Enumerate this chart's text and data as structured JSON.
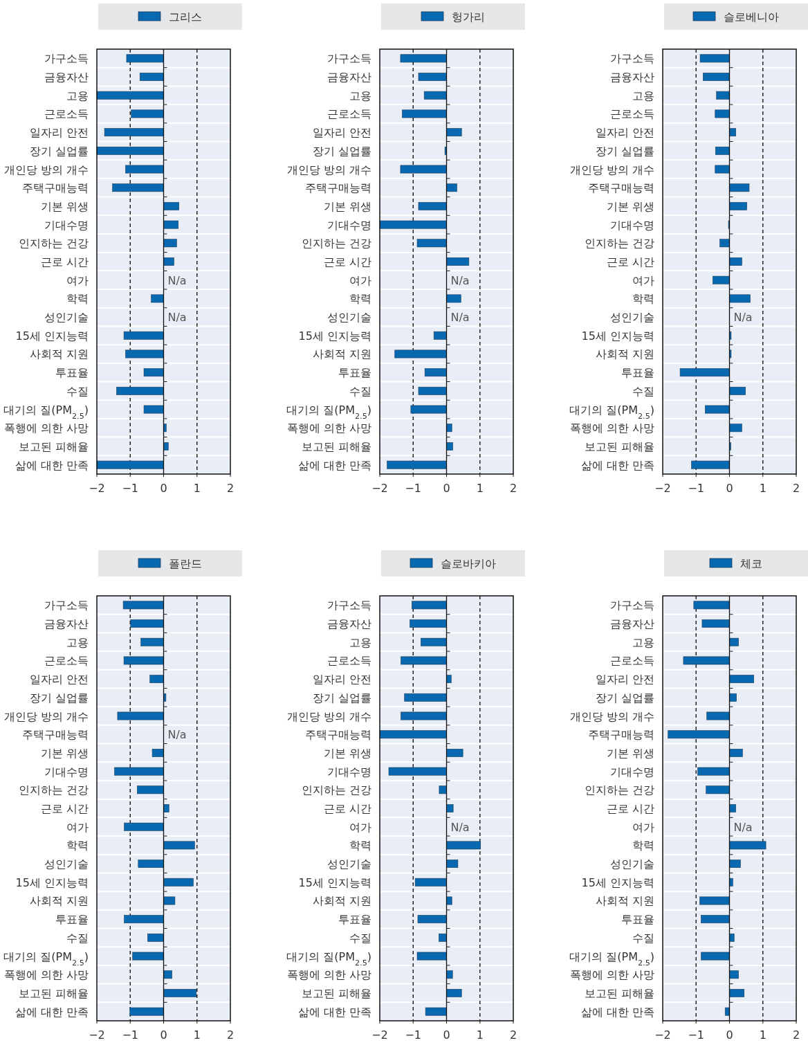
{
  "chart_data": [
    {
      "type": "bar",
      "orientation": "horizontal",
      "categories": [
        "가구소득",
        "금융자산",
        "고용",
        "근로소득",
        "일자리 안전",
        "장기 실업률",
        "개인당 방의 개수",
        "주택구매능력",
        "기본 위생",
        "기대수명",
        "인지하는 건강",
        "근로 시간",
        "여가",
        "학력",
        "성인기술",
        "15세 인지능력",
        "사회적 지원",
        "투표율",
        "수질",
        "대기의 질(PM$_{2.5}$)",
        "폭행에 의한 사망",
        "보고된 피해율",
        "삶에 대한 만족"
      ],
      "series": [
        {
          "name": "그리스",
          "color": "#0868b0",
          "values": [
            -1.11,
            -0.71,
            -2.0,
            -0.97,
            -1.77,
            -2.0,
            -1.14,
            -1.53,
            0.46,
            0.44,
            0.39,
            0.31,
            null,
            -0.37,
            null,
            -1.19,
            -1.14,
            -0.59,
            -1.41,
            -0.59,
            0.08,
            0.14,
            -2.0
          ]
        }
      ],
      "xlim": [
        -2,
        2
      ],
      "xticks": [
        -2,
        -1,
        0,
        1,
        2
      ],
      "ref_lines": [
        {
          "axis": "x",
          "value": -1,
          "line_style": "dashed"
        },
        {
          "axis": "x",
          "value": 1,
          "line_style": "dashed"
        }
      ],
      "annotations": [
        "N/a",
        "N/a"
      ],
      "legend": "top",
      "grid": "y"
    },
    {
      "type": "bar",
      "orientation": "horizontal",
      "categories": [
        "가구소득",
        "금융자산",
        "고용",
        "근로소득",
        "일자리 안전",
        "장기 실업률",
        "개인당 방의 개수",
        "주택구매능력",
        "기본 위생",
        "기대수명",
        "인지하는 건강",
        "근로 시간",
        "여가",
        "학력",
        "성인기술",
        "15세 인지능력",
        "사회적 지원",
        "투표율",
        "수질",
        "대기의 질(PM$_{2.5}$)",
        "폭행에 의한 사망",
        "보고된 피해율",
        "삶에 대한 만족"
      ],
      "series": [
        {
          "name": "헝가리",
          "color": "#0868b0",
          "values": [
            -1.38,
            -0.84,
            -0.67,
            -1.33,
            0.45,
            -0.05,
            -1.38,
            0.31,
            -0.84,
            -2.0,
            -0.88,
            0.67,
            null,
            0.43,
            null,
            -0.38,
            -1.55,
            -0.65,
            -0.84,
            -1.07,
            0.16,
            0.19,
            -1.78
          ]
        }
      ],
      "xlim": [
        -2,
        2
      ],
      "xticks": [
        -2,
        -1,
        0,
        1,
        2
      ],
      "ref_lines": [
        {
          "axis": "x",
          "value": -1,
          "line_style": "dashed"
        },
        {
          "axis": "x",
          "value": 1,
          "line_style": "dashed"
        }
      ],
      "annotations": [
        "N/a",
        "N/a"
      ],
      "legend": "top",
      "grid": "y"
    },
    {
      "type": "bar",
      "orientation": "horizontal",
      "categories": [
        "가구소득",
        "금융자산",
        "고용",
        "근로소득",
        "일자리 안전",
        "장기 실업률",
        "개인당 방의 개수",
        "주택구매능력",
        "기본 위생",
        "기대수명",
        "인지하는 건강",
        "근로 시간",
        "여가",
        "학력",
        "성인기술",
        "15세 인지능력",
        "사회적 지원",
        "투표율",
        "수질",
        "대기의 질(PM$_{2.5}$)",
        "폭행에 의한 사망",
        "보고된 피해율",
        "삶에 대한 만족"
      ],
      "series": [
        {
          "name": "슬로베니아",
          "color": "#0868b0",
          "values": [
            -0.88,
            -0.79,
            -0.39,
            -0.43,
            0.19,
            -0.42,
            -0.43,
            0.59,
            0.52,
            -0.03,
            -0.29,
            0.37,
            -0.5,
            0.62,
            null,
            0.05,
            0.05,
            -1.48,
            0.48,
            -0.73,
            0.37,
            0.04,
            -1.14
          ]
        }
      ],
      "xlim": [
        -2,
        2
      ],
      "xticks": [
        -2,
        -1,
        0,
        1,
        2
      ],
      "ref_lines": [
        {
          "axis": "x",
          "value": -1,
          "line_style": "dashed"
        },
        {
          "axis": "x",
          "value": 1,
          "line_style": "dashed"
        }
      ],
      "annotations": [
        "N/a"
      ],
      "legend": "top",
      "grid": "y"
    },
    {
      "type": "bar",
      "orientation": "horizontal",
      "categories": [
        "가구소득",
        "금융자산",
        "고용",
        "근로소득",
        "일자리 안전",
        "장기 실업률",
        "개인당 방의 개수",
        "주택구매능력",
        "기본 위생",
        "기대수명",
        "인지하는 건강",
        "근로 시간",
        "여가",
        "학력",
        "성인기술",
        "15세 인지능력",
        "사회적 지원",
        "투표율",
        "수질",
        "대기의 질(PM$_{2.5}$)",
        "폭행에 의한 사망",
        "보고된 피해율",
        "삶에 대한 만족"
      ],
      "series": [
        {
          "name": "폴란드",
          "color": "#0868b0",
          "values": [
            -1.21,
            -0.99,
            -0.68,
            -1.19,
            -0.41,
            0.07,
            -1.38,
            null,
            -0.34,
            -1.47,
            -0.79,
            0.16,
            -1.18,
            0.93,
            -0.76,
            0.89,
            0.34,
            -1.18,
            -0.48,
            -0.93,
            0.25,
            0.98,
            -1.01
          ]
        }
      ],
      "xlim": [
        -2,
        2
      ],
      "xticks": [
        -2,
        -1,
        0,
        1,
        2
      ],
      "ref_lines": [
        {
          "axis": "x",
          "value": -1,
          "line_style": "dashed"
        },
        {
          "axis": "x",
          "value": 1,
          "line_style": "dashed"
        }
      ],
      "annotations": [
        "N/a"
      ],
      "legend": "top",
      "grid": "y"
    },
    {
      "type": "bar",
      "orientation": "horizontal",
      "categories": [
        "가구소득",
        "금융자산",
        "고용",
        "근로소득",
        "일자리 안전",
        "장기 실업률",
        "개인당 방의 개수",
        "주택구매능력",
        "기본 위생",
        "기대수명",
        "인지하는 건강",
        "근로 시간",
        "여가",
        "학력",
        "성인기술",
        "15세 인지능력",
        "사회적 지원",
        "투표율",
        "수질",
        "대기의 질(PM$_{2.5}$)",
        "폭행에 의한 사망",
        "보고된 피해율",
        "삶에 대한 만족"
      ],
      "series": [
        {
          "name": "슬로바키아",
          "color": "#0868b0",
          "values": [
            -1.04,
            -1.1,
            -0.77,
            -1.37,
            0.14,
            -1.26,
            -1.37,
            -2.0,
            0.49,
            -1.73,
            -0.22,
            0.2,
            null,
            1.02,
            0.34,
            -0.94,
            0.16,
            -0.86,
            -0.23,
            -0.88,
            0.18,
            0.45,
            -0.63
          ]
        }
      ],
      "xlim": [
        -2,
        2
      ],
      "xticks": [
        -2,
        -1,
        0,
        1,
        2
      ],
      "ref_lines": [
        {
          "axis": "x",
          "value": -1,
          "line_style": "dashed"
        },
        {
          "axis": "x",
          "value": 1,
          "line_style": "dashed"
        }
      ],
      "annotations": [
        "N/a"
      ],
      "legend": "top",
      "grid": "y"
    },
    {
      "type": "bar",
      "orientation": "horizontal",
      "categories": [
        "가구소득",
        "금융자산",
        "고용",
        "근로소득",
        "일자리 안전",
        "장기 실업률",
        "개인당 방의 개수",
        "주택구매능력",
        "기본 위생",
        "기대수명",
        "인지하는 건강",
        "근로 시간",
        "여가",
        "학력",
        "성인기술",
        "15세 인지능력",
        "사회적 지원",
        "투표율",
        "수질",
        "대기의 질(PM$_{2.5}$)",
        "폭행에 의한 사망",
        "보고된 피해율",
        "삶에 대한 만족"
      ],
      "series": [
        {
          "name": "체코",
          "color": "#0868b0",
          "values": [
            -1.07,
            -0.82,
            0.27,
            -1.38,
            0.73,
            0.21,
            -0.68,
            -1.84,
            0.39,
            -0.95,
            -0.7,
            0.19,
            null,
            1.09,
            0.33,
            0.1,
            -0.89,
            -0.85,
            0.14,
            -0.85,
            0.27,
            0.44,
            -0.13
          ]
        }
      ],
      "xlim": [
        -2,
        2
      ],
      "xticks": [
        -2,
        -1,
        0,
        1,
        2
      ],
      "ref_lines": [
        {
          "axis": "x",
          "value": -1,
          "line_style": "dashed"
        },
        {
          "axis": "x",
          "value": 1,
          "line_style": "dashed"
        }
      ],
      "annotations": [
        "N/a"
      ],
      "legend": "top",
      "grid": "y"
    }
  ]
}
